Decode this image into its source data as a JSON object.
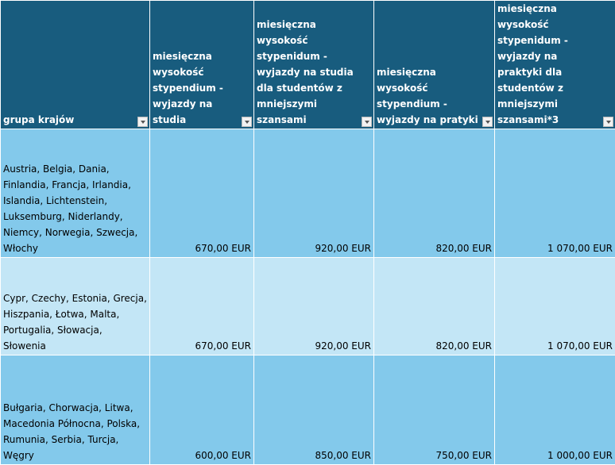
{
  "colors": {
    "header": "#185c7e",
    "row_dark": "#83c9eb",
    "row_light": "#c3e6f6"
  },
  "headers": [
    "grupa krajów",
    "miesięczna wysokość stypendium - wyjazdy na studia",
    "miesięczna wysokość stypenidum - wyjazdy na studia dla studentów z mniejszymi szansami",
    "miesięczna wysokość stypendium - wyjazdy na pratyki",
    "miesięczna wysokość stypenidum - wyjazdy na praktyki dla studentów z mniejszymi szansami*3"
  ],
  "rows": [
    {
      "countries": "Austria, Belgia, Dania, Finlandia, Francja, Irlandia, Islandia, Lichtenstein, Luksemburg, Niderlandy, Niemcy, Norwegia, Szwecja, Włochy",
      "values": [
        "670,00 EUR",
        "920,00 EUR",
        "820,00 EUR",
        "1 070,00 EUR"
      ]
    },
    {
      "countries": "Cypr, Czechy, Estonia, Grecja, Hiszpania, Łotwa, Malta, Portugalia, Słowacja, Słowenia",
      "values": [
        "670,00 EUR",
        "920,00 EUR",
        "820,00 EUR",
        "1 070,00 EUR"
      ]
    },
    {
      "countries": "Bułgaria, Chorwacja, Litwa, Macedonia Północna, Polska, Rumunia, Serbia, Turcja, Węgry",
      "values": [
        "600,00 EUR",
        "850,00 EUR",
        "750,00 EUR",
        "1 000,00 EUR"
      ]
    }
  ]
}
